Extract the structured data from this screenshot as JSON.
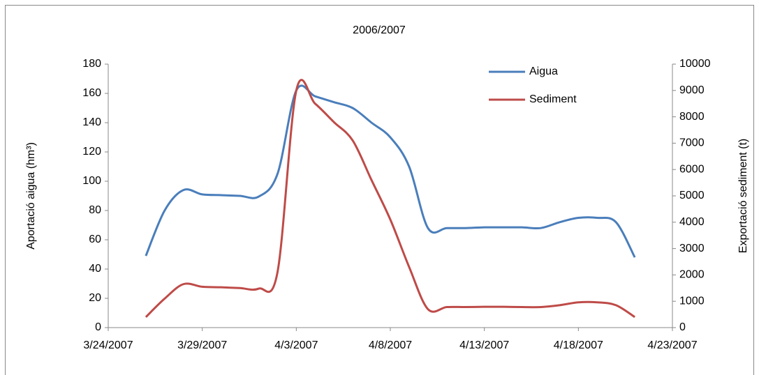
{
  "chart_data": {
    "type": "line",
    "title": "2006/2007",
    "y_label": "Aportació aigua (hm³)",
    "y2_label": "Exportació sediment  (t)",
    "x": [
      "3/26/2007",
      "3/27/2007",
      "3/28/2007",
      "3/29/2007",
      "3/30/2007",
      "3/31/2007",
      "4/1/2007",
      "4/2/2007",
      "4/3/2007",
      "4/4/2007",
      "4/5/2007",
      "4/6/2007",
      "4/7/2007",
      "4/8/2007",
      "4/9/2007",
      "4/10/2007",
      "4/11/2007",
      "4/12/2007",
      "4/13/2007",
      "4/14/2007",
      "4/15/2007",
      "4/16/2007",
      "4/17/2007",
      "4/18/2007",
      "4/19/2007",
      "4/20/2007",
      "4/21/2007"
    ],
    "series": [
      {
        "name": "Aigua",
        "color": "#4a7ebb",
        "values": [
          49,
          80,
          94,
          91,
          90.5,
          90,
          89.5,
          105,
          162,
          158,
          154,
          150,
          140,
          130,
          110,
          68,
          68,
          68,
          68.5,
          68.5,
          68.5,
          68,
          72,
          75,
          75,
          72,
          48
        ]
      },
      {
        "name": "Sediment",
        "color": "#be4b48",
        "axis": "y2",
        "values": [
          400,
          1100,
          1650,
          1550,
          1530,
          1500,
          1480,
          2100,
          9000,
          8500,
          7800,
          7100,
          5600,
          4100,
          2300,
          700,
          780,
          780,
          790,
          790,
          780,
          780,
          850,
          960,
          960,
          850,
          400
        ]
      }
    ],
    "xlim": [
      "3/24/2007",
      "4/23/2007"
    ],
    "xticks": [
      "3/24/2007",
      "3/29/2007",
      "4/3/2007",
      "4/8/2007",
      "4/13/2007",
      "4/18/2007",
      "4/23/2007"
    ],
    "ylim": [
      0,
      180
    ],
    "yticks": [
      0,
      20,
      40,
      60,
      80,
      100,
      120,
      140,
      160,
      180
    ],
    "y2lim": [
      0,
      10000
    ],
    "y2ticks": [
      0,
      1000,
      2000,
      3000,
      4000,
      5000,
      6000,
      7000,
      8000,
      9000,
      10000
    ],
    "legend": "top-right"
  }
}
